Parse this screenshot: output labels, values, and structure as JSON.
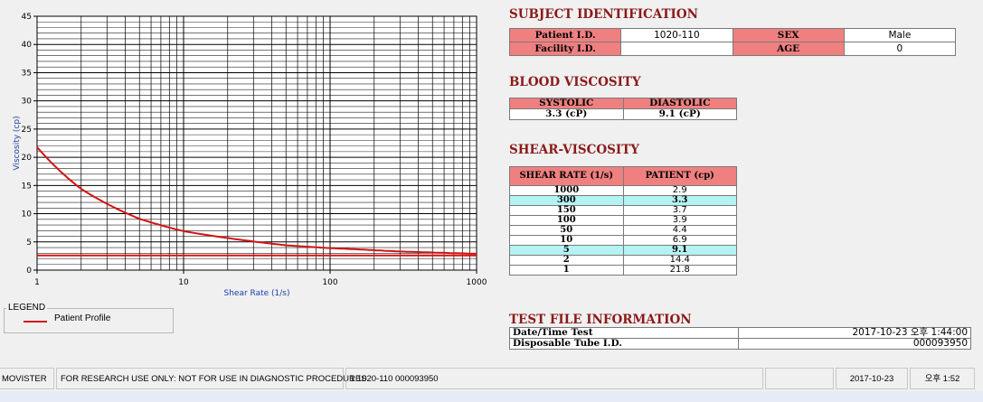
{
  "chart_data": {
    "type": "line",
    "xlabel": "Shear Rate (1/s)",
    "ylabel": "Viscosity (cp)",
    "xscale": "log",
    "xlim": [
      1,
      1000
    ],
    "ylim": [
      0,
      45
    ],
    "x_ticks": [
      "1",
      "10",
      "100",
      "1000"
    ],
    "y_ticks": [
      "0",
      "5",
      "10",
      "15",
      "20",
      "25",
      "30",
      "35",
      "40",
      "45"
    ],
    "grid": true,
    "series": [
      {
        "name": "Patient Profile",
        "color": "#d21414",
        "x": [
          1,
          2,
          5,
          10,
          50,
          100,
          150,
          300,
          1000
        ],
        "y": [
          21.8,
          14.4,
          9.1,
          6.9,
          4.4,
          3.9,
          3.7,
          3.3,
          2.9
        ]
      }
    ],
    "reference_line": {
      "y": 2.6,
      "color": "#d21414"
    }
  },
  "legend": {
    "title": "LEGEND",
    "item": "Patient Profile"
  },
  "subject": {
    "title": "SUBJECT IDENTIFICATION",
    "patient_id_label": "Patient I.D.",
    "patient_id": "1020-110",
    "sex_label": "SEX",
    "sex": "Male",
    "facility_id_label": "Facility I.D.",
    "facility_id": "",
    "age_label": "AGE",
    "age": "0"
  },
  "blood_viscosity": {
    "title": "BLOOD VISCOSITY",
    "systolic_label": "SYSTOLIC",
    "diastolic_label": "DIASTOLIC",
    "systolic": "3.3 (cP)",
    "diastolic": "9.1 (cP)"
  },
  "shear_viscosity": {
    "title": "SHEAR-VISCOSITY",
    "col_rate": "SHEAR RATE (1/s)",
    "col_patient": "PATIENT (cp)",
    "rows": [
      {
        "rate": "1000",
        "value": "2.9"
      },
      {
        "rate": "300",
        "value": "3.3"
      },
      {
        "rate": "150",
        "value": "3.7"
      },
      {
        "rate": "100",
        "value": "3.9"
      },
      {
        "rate": "50",
        "value": "4.4"
      },
      {
        "rate": "10",
        "value": "6.9"
      },
      {
        "rate": "5",
        "value": "9.1"
      },
      {
        "rate": "2",
        "value": "14.4"
      },
      {
        "rate": "1",
        "value": "21.8"
      }
    ]
  },
  "test_file": {
    "title": "TEST FILE INFORMATION",
    "date_label": "Date/Time Test",
    "date_value": "2017-10-23   오후 1:44:00",
    "tube_label": "Disposable Tube I.D.",
    "tube_value": "000093950"
  },
  "status_bar": {
    "app": "MOVISTER",
    "notice": "FOR RESEARCH USE ONLY: NOT FOR USE IN DIAGNOSTIC PROCEDURES",
    "record": "1  1020-110  000093950",
    "date": "2017-10-23",
    "time": "오후 1:52"
  }
}
